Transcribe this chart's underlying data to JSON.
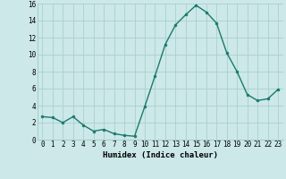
{
  "x": [
    0,
    1,
    2,
    3,
    4,
    5,
    6,
    7,
    8,
    9,
    10,
    11,
    12,
    13,
    14,
    15,
    16,
    17,
    18,
    19,
    20,
    21,
    22,
    23
  ],
  "y": [
    2.7,
    2.6,
    2.0,
    2.7,
    1.7,
    1.0,
    1.2,
    0.7,
    0.5,
    0.4,
    3.9,
    7.5,
    11.2,
    13.5,
    14.7,
    15.8,
    15.0,
    13.7,
    10.2,
    8.0,
    5.3,
    4.6,
    4.8,
    5.9
  ],
  "line_color": "#1a7a6e",
  "marker_color": "#1a7a6e",
  "bg_color": "#cce8e8",
  "grid_color": "#aacfcf",
  "xlabel": "Humidex (Indice chaleur)",
  "ylim": [
    0,
    16
  ],
  "xlim": [
    -0.5,
    23.5
  ],
  "yticks": [
    0,
    2,
    4,
    6,
    8,
    10,
    12,
    14,
    16
  ],
  "xticks": [
    0,
    1,
    2,
    3,
    4,
    5,
    6,
    7,
    8,
    9,
    10,
    11,
    12,
    13,
    14,
    15,
    16,
    17,
    18,
    19,
    20,
    21,
    22,
    23
  ],
  "tick_fontsize": 5.5,
  "xlabel_fontsize": 6.5,
  "linewidth": 1.0,
  "markersize": 2.0
}
